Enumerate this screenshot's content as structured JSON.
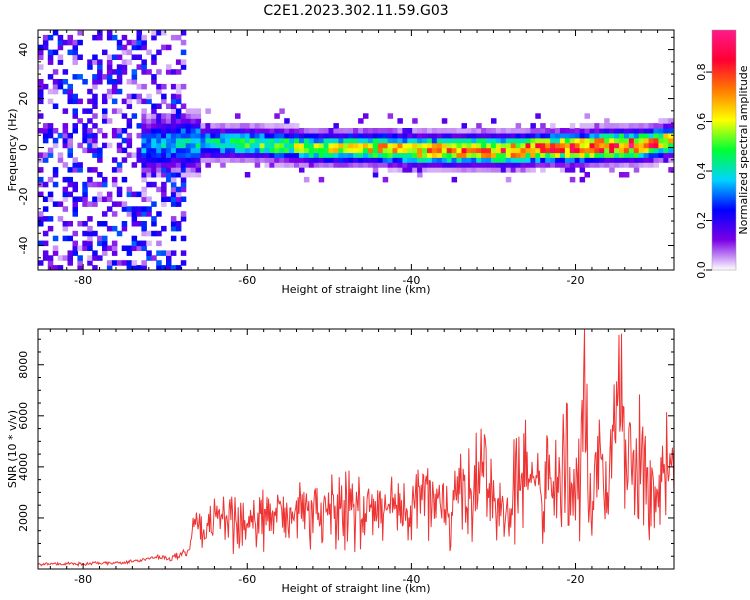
{
  "title": "C2E1.2023.302.11.59.G03",
  "chart_data": [
    {
      "type": "heatmap",
      "xlabel": "Height of straight line (km)",
      "ylabel": "Frequency (Hz)",
      "xlim": [
        -85.5,
        -8
      ],
      "ylim": [
        -50,
        48
      ],
      "xticks": [
        -80,
        -60,
        -40,
        -20
      ],
      "yticks": [
        -40,
        -20,
        0,
        20,
        40
      ],
      "grid": false,
      "colorbar": {
        "label": "Normalized spectral amplitude",
        "range": [
          0,
          0.97
        ],
        "ticks": [
          0.0,
          0.2,
          0.4,
          0.6,
          0.8
        ],
        "tick_labels": [
          "0.0",
          "0.2",
          "0.4",
          "0.6",
          "0.8"
        ],
        "colors": [
          "#ffffff",
          "#7a00e6",
          "#0000ff",
          "#00d4ff",
          "#00ff33",
          "#ffff00",
          "#ff7a00",
          "#ff0033",
          "#ff1a8c"
        ]
      },
      "ridge": {
        "description_values": "frequency of maximum spectral amplitude vs height",
        "x": [
          -72,
          -68,
          -64,
          -60,
          -56,
          -52,
          -48,
          -44,
          -40,
          -36,
          -32,
          -28,
          -24,
          -20,
          -16,
          -12,
          -9
        ],
        "y": [
          1,
          2,
          2,
          2,
          1,
          0,
          0,
          0,
          -1,
          -1,
          -1,
          -1,
          0,
          0,
          1,
          1,
          3
        ],
        "amplitude": [
          0.35,
          0.4,
          0.45,
          0.5,
          0.55,
          0.6,
          0.65,
          0.7,
          0.72,
          0.75,
          0.78,
          0.8,
          0.82,
          0.85,
          0.88,
          0.85,
          0.7
        ]
      },
      "noise_region": {
        "x_from": -85.5,
        "x_to": -68,
        "amplitude_max": 0.3
      }
    },
    {
      "type": "line",
      "xlabel": "Height of straight line (km)",
      "ylabel": "SNR (10 * v/v)",
      "xlim": [
        -85.5,
        -8
      ],
      "ylim": [
        0,
        9400
      ],
      "xticks": [
        -80,
        -60,
        -40,
        -20
      ],
      "yticks": [
        2000,
        4000,
        6000,
        8000
      ],
      "grid": false,
      "series": [
        {
          "color": "#ee3333",
          "x": [
            -85.5,
            -80,
            -75,
            -71,
            -69,
            -67,
            -66.5,
            -65,
            -62,
            -60,
            -58,
            -56,
            -54,
            -52,
            -50,
            -48,
            -46,
            -44,
            -42,
            -40,
            -38,
            -36,
            -34,
            -32,
            -31,
            -30,
            -28.5,
            -27,
            -26,
            -25,
            -24,
            -23,
            -22,
            -21,
            -20,
            -19.5,
            -19,
            -18.5,
            -18,
            -17,
            -16,
            -15,
            -14.5,
            -14,
            -13,
            -12,
            -11,
            -10,
            -9,
            -8
          ],
          "y": [
            200,
            200,
            250,
            450,
            450,
            700,
            1600,
            1700,
            1900,
            2000,
            2200,
            2300,
            2400,
            2300,
            2500,
            2600,
            2500,
            2300,
            2400,
            2500,
            2900,
            2300,
            3200,
            3700,
            4400,
            2500,
            2000,
            4500,
            4200,
            3600,
            3100,
            4400,
            3500,
            4800,
            3000,
            4200,
            9200,
            3900,
            2500,
            4100,
            3500,
            5800,
            7000,
            4500,
            3800,
            4800,
            3600,
            3500,
            4200,
            4000
          ]
        }
      ]
    }
  ]
}
